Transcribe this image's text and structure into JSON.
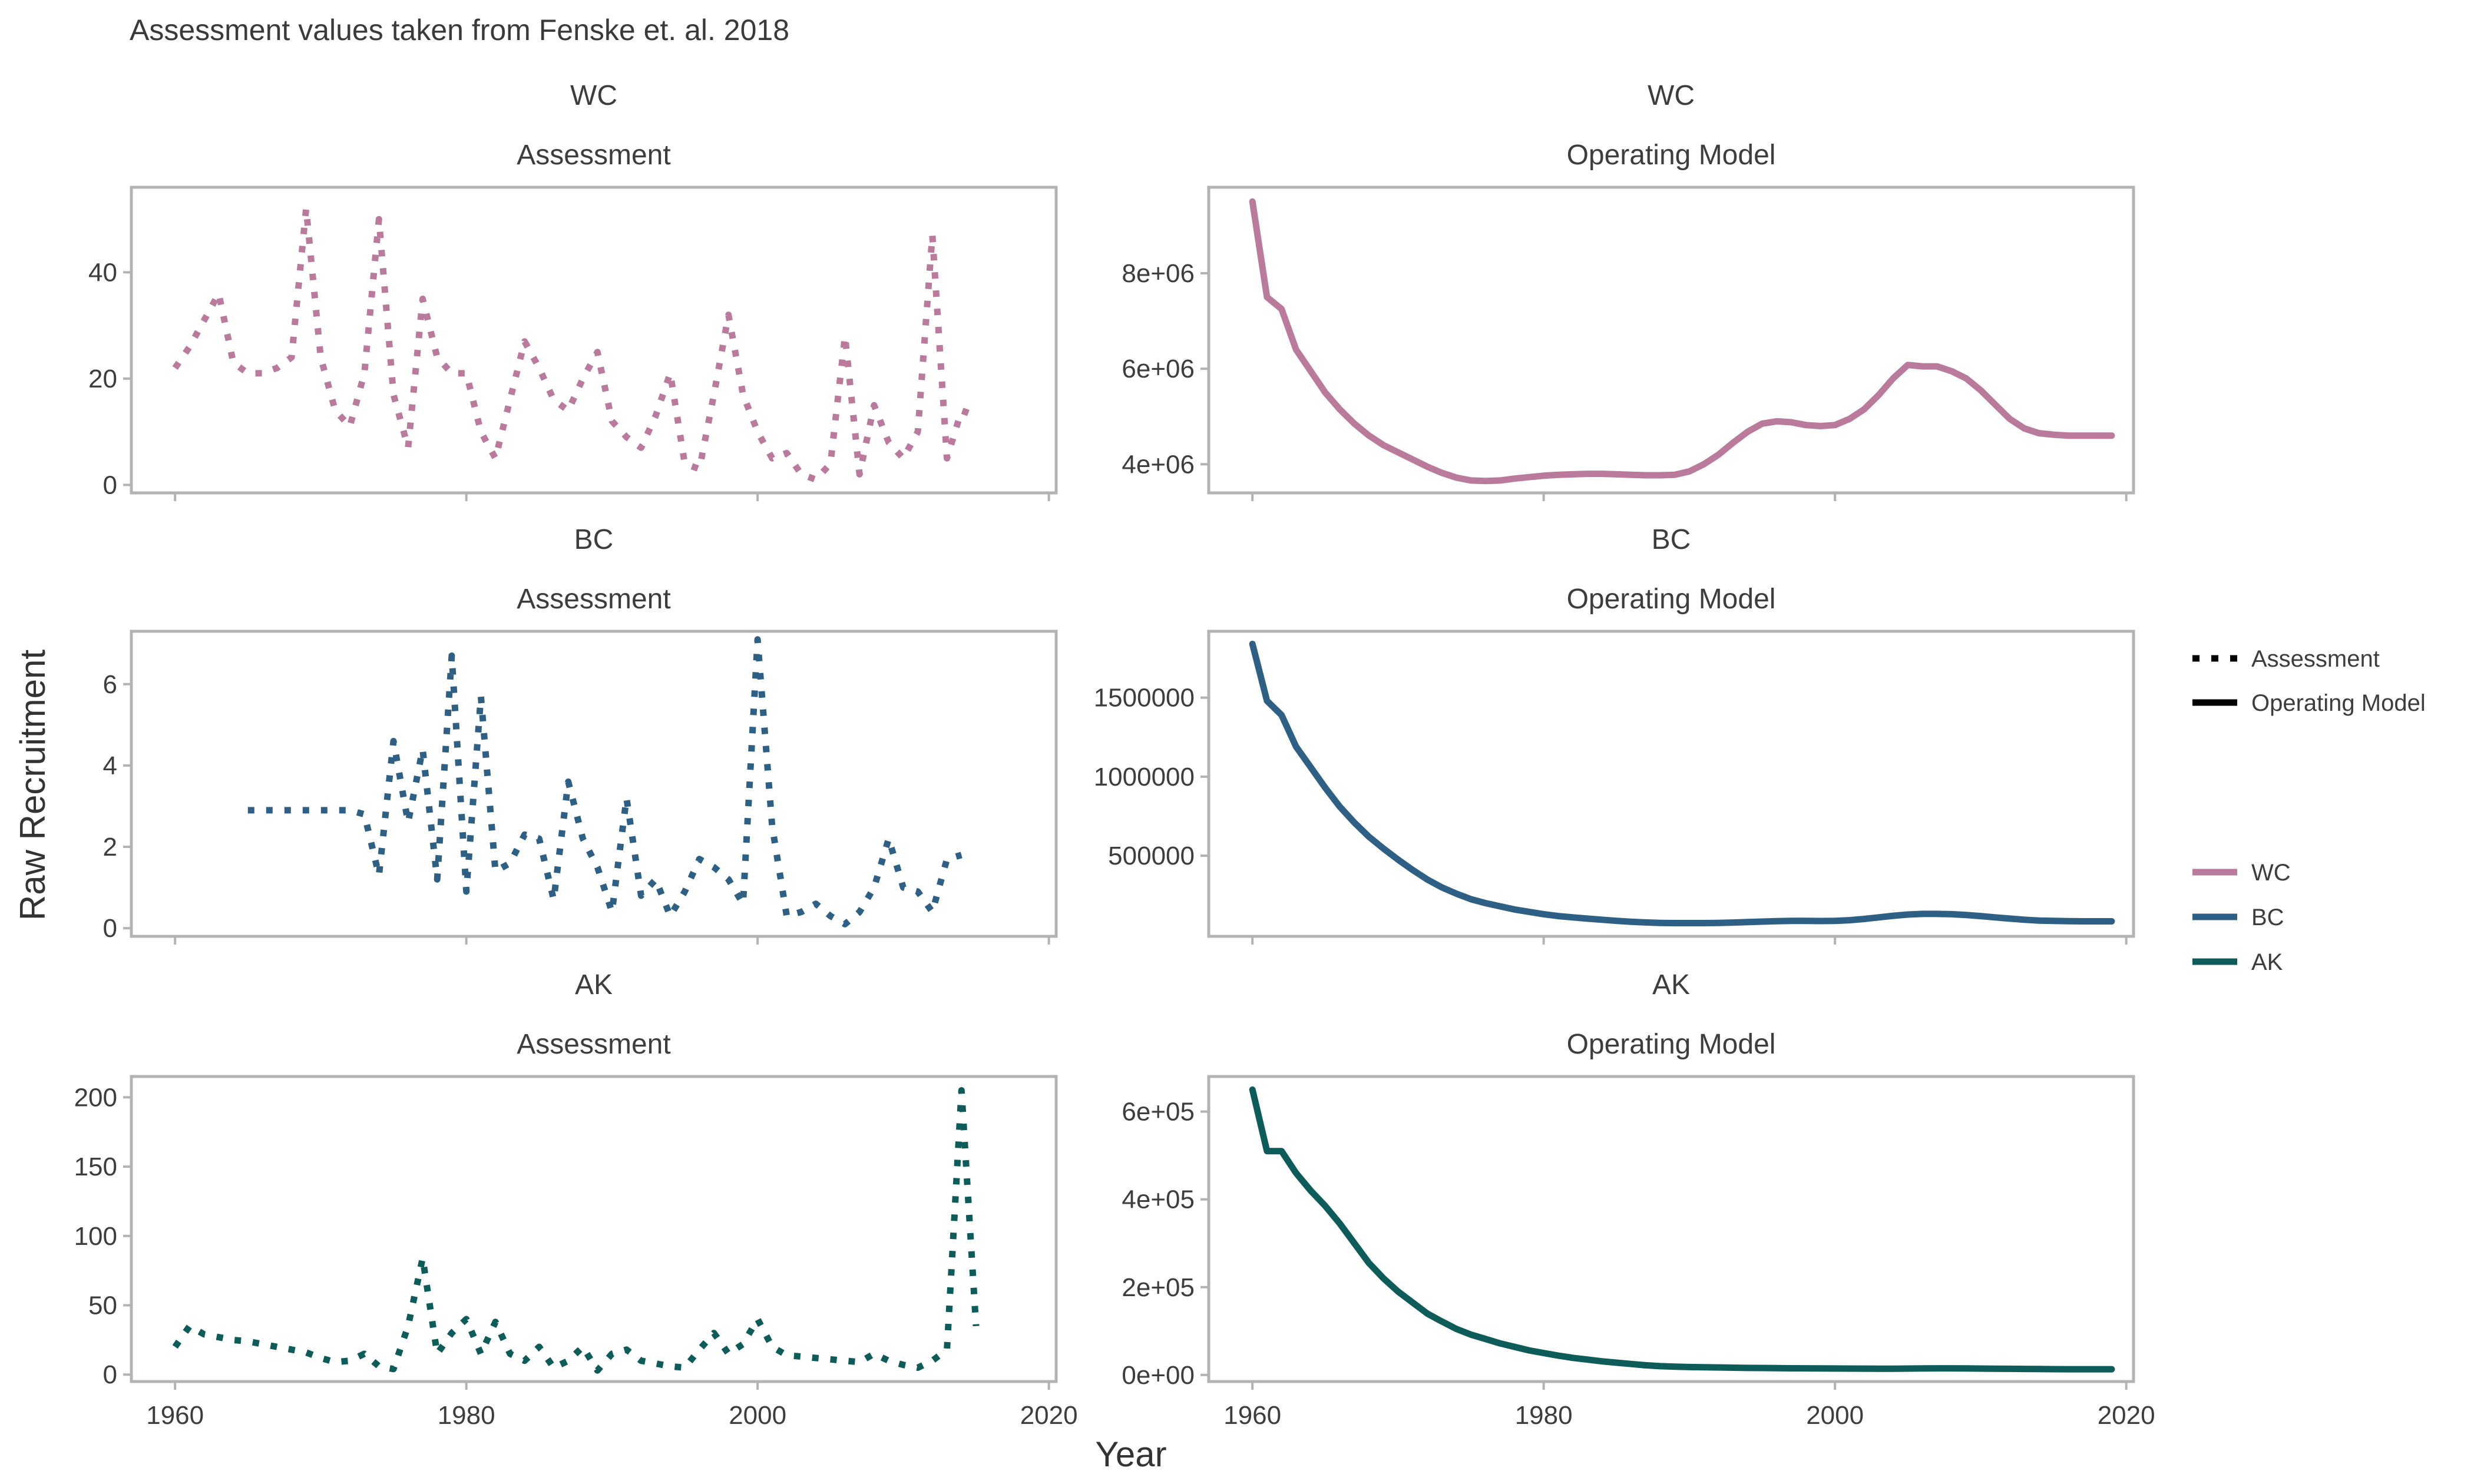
{
  "title": "Assessment values taken from Fenske et. al. 2018",
  "xlabel": "Year",
  "ylabel": "Raw Recruitment",
  "legend_linetype": [
    {
      "label": "Assessment",
      "dash": "dotted"
    },
    {
      "label": "Operating Model",
      "dash": "solid"
    }
  ],
  "legend_color": [
    {
      "label": "WC",
      "color": "#b97a9b"
    },
    {
      "label": "BC",
      "color": "#2e5f84"
    },
    {
      "label": "AK",
      "color": "#0d5c59"
    }
  ],
  "chart_data": {
    "type": "line",
    "facet_rows": [
      "WC",
      "BC",
      "AK"
    ],
    "facet_cols": [
      "Assessment",
      "Operating Model"
    ],
    "xlim": [
      1957,
      2020.5
    ],
    "x_ticks": [
      1960,
      1980,
      2000,
      2020
    ],
    "x_tick_labels": [
      "1960",
      "1980",
      "2000",
      "2020"
    ],
    "panels": [
      {
        "stock": "WC",
        "model": "Assessment",
        "color": "#b97a9b",
        "dash": "dotted",
        "ylim": [
          -1.5,
          56
        ],
        "y_ticks": [
          0,
          20,
          40
        ],
        "y_tick_labels": [
          "0",
          "20",
          "40"
        ],
        "x": [
          1960,
          1961,
          1962,
          1963,
          1964,
          1965,
          1966,
          1967,
          1968,
          1969,
          1970,
          1971,
          1972,
          1973,
          1974,
          1975,
          1976,
          1977,
          1978,
          1979,
          1980,
          1981,
          1982,
          1983,
          1984,
          1985,
          1986,
          1987,
          1988,
          1989,
          1990,
          1991,
          1992,
          1993,
          1994,
          1995,
          1996,
          1997,
          1998,
          1999,
          2000,
          2001,
          2002,
          2003,
          2004,
          2005,
          2006,
          2007,
          2008,
          2009,
          2010,
          2011,
          2012,
          2013,
          2014,
          2015
        ],
        "y": [
          22,
          26,
          31,
          36,
          23,
          21,
          21,
          22,
          24,
          52,
          24,
          14,
          11,
          21,
          50,
          17,
          7,
          35,
          24,
          21,
          21,
          10,
          5,
          16,
          27,
          22,
          16,
          14,
          20,
          25,
          12,
          9,
          7,
          13,
          21,
          4,
          3,
          17,
          32,
          17,
          10,
          5,
          6,
          2,
          1,
          4,
          28,
          2,
          15,
          8,
          5,
          10,
          47,
          5,
          14,
          13
        ]
      },
      {
        "stock": "WC",
        "model": "Operating Model",
        "color": "#b97a9b",
        "dash": "solid",
        "ylim": [
          3400000,
          9800000
        ],
        "y_ticks": [
          4000000,
          6000000,
          8000000
        ],
        "y_tick_labels": [
          "4e+06",
          "6e+06",
          "8e+06"
        ],
        "x": [
          1960,
          1961,
          1962,
          1963,
          1964,
          1965,
          1966,
          1967,
          1968,
          1969,
          1970,
          1971,
          1972,
          1973,
          1974,
          1975,
          1976,
          1977,
          1978,
          1979,
          1980,
          1981,
          1982,
          1983,
          1984,
          1985,
          1986,
          1987,
          1988,
          1989,
          1990,
          1991,
          1992,
          1993,
          1994,
          1995,
          1996,
          1997,
          1998,
          1999,
          2000,
          2001,
          2002,
          2003,
          2004,
          2005,
          2006,
          2007,
          2008,
          2009,
          2010,
          2011,
          2012,
          2013,
          2014,
          2015,
          2016,
          2017,
          2018,
          2019
        ],
        "y": [
          9500000,
          7500000,
          7250000,
          6400000,
          5950000,
          5500000,
          5150000,
          4850000,
          4600000,
          4400000,
          4250000,
          4100000,
          3950000,
          3820000,
          3720000,
          3660000,
          3650000,
          3660000,
          3700000,
          3730000,
          3760000,
          3780000,
          3790000,
          3800000,
          3800000,
          3790000,
          3780000,
          3770000,
          3770000,
          3780000,
          3850000,
          4000000,
          4200000,
          4450000,
          4680000,
          4850000,
          4900000,
          4880000,
          4820000,
          4800000,
          4820000,
          4950000,
          5150000,
          5450000,
          5800000,
          6080000,
          6050000,
          6050000,
          5950000,
          5800000,
          5550000,
          5250000,
          4950000,
          4750000,
          4650000,
          4620000,
          4600000,
          4600000,
          4600000,
          4600000
        ]
      },
      {
        "stock": "BC",
        "model": "Assessment",
        "color": "#2e5f84",
        "dash": "dotted",
        "ylim": [
          -0.2,
          7.3
        ],
        "y_ticks": [
          0,
          2,
          4,
          6
        ],
        "y_tick_labels": [
          "0",
          "2",
          "4",
          "6"
        ],
        "x": [
          1965,
          1966,
          1967,
          1968,
          1969,
          1970,
          1971,
          1972,
          1973,
          1974,
          1975,
          1976,
          1977,
          1978,
          1979,
          1980,
          1981,
          1982,
          1983,
          1984,
          1985,
          1986,
          1987,
          1988,
          1989,
          1990,
          1991,
          1992,
          1993,
          1994,
          1995,
          1996,
          1997,
          1998,
          1999,
          2000,
          2001,
          2002,
          2003,
          2004,
          2005,
          2006,
          2007,
          2008,
          2009,
          2010,
          2011,
          2012,
          2013,
          2014
        ],
        "y": [
          2.9,
          2.9,
          2.9,
          2.9,
          2.9,
          2.9,
          2.9,
          2.9,
          2.8,
          1.3,
          4.6,
          2.6,
          4.4,
          1.2,
          6.7,
          0.9,
          5.7,
          1.4,
          1.6,
          2.3,
          2.2,
          0.7,
          3.6,
          2.2,
          1.5,
          0.4,
          3.2,
          0.8,
          1.2,
          0.3,
          0.9,
          1.7,
          1.5,
          1.2,
          0.6,
          7.1,
          2.5,
          0.3,
          0.4,
          0.6,
          0.3,
          0.1,
          0.4,
          1.0,
          2.2,
          1.0,
          0.9,
          0.4,
          1.7,
          1.8
        ]
      },
      {
        "stock": "BC",
        "model": "Operating Model",
        "color": "#2e5f84",
        "dash": "solid",
        "ylim": [
          -10000,
          1920000
        ],
        "y_ticks": [
          500000,
          1000000,
          1500000
        ],
        "y_tick_labels": [
          "500000",
          "1000000",
          "1500000"
        ],
        "x": [
          1960,
          1961,
          1962,
          1963,
          1964,
          1965,
          1966,
          1967,
          1968,
          1969,
          1970,
          1971,
          1972,
          1973,
          1974,
          1975,
          1976,
          1977,
          1978,
          1979,
          1980,
          1981,
          1982,
          1983,
          1984,
          1985,
          1986,
          1987,
          1988,
          1989,
          1990,
          1991,
          1992,
          1993,
          1994,
          1995,
          1996,
          1997,
          1998,
          1999,
          2000,
          2001,
          2002,
          2003,
          2004,
          2005,
          2006,
          2007,
          2008,
          2009,
          2010,
          2011,
          2012,
          2013,
          2014,
          2015,
          2016,
          2017,
          2018,
          2019
        ],
        "y": [
          1840000,
          1480000,
          1390000,
          1190000,
          1060000,
          930000,
          810000,
          710000,
          620000,
          545000,
          475000,
          410000,
          350000,
          300000,
          260000,
          225000,
          200000,
          180000,
          160000,
          145000,
          130000,
          118000,
          110000,
          102000,
          95000,
          88000,
          82000,
          78000,
          75000,
          74000,
          74000,
          74000,
          75000,
          77000,
          80000,
          83000,
          86000,
          88000,
          88000,
          87000,
          88000,
          92000,
          100000,
          110000,
          120000,
          128000,
          132000,
          132000,
          130000,
          125000,
          118000,
          110000,
          102000,
          95000,
          90000,
          88000,
          86000,
          85000,
          85000,
          85000
        ]
      },
      {
        "stock": "AK",
        "model": "Assessment",
        "color": "#0d5c59",
        "dash": "dotted",
        "ylim": [
          -5,
          215
        ],
        "y_ticks": [
          0,
          50,
          100,
          150,
          200
        ],
        "y_tick_labels": [
          "0",
          "50",
          "100",
          "150",
          "200"
        ],
        "x": [
          1960,
          1961,
          1962,
          1963,
          1964,
          1965,
          1966,
          1967,
          1968,
          1969,
          1970,
          1971,
          1972,
          1973,
          1974,
          1975,
          1976,
          1977,
          1978,
          1979,
          1980,
          1981,
          1982,
          1983,
          1984,
          1985,
          1986,
          1987,
          1988,
          1989,
          1990,
          1991,
          1992,
          1993,
          1994,
          1995,
          1996,
          1997,
          1998,
          1999,
          2000,
          2001,
          2002,
          2003,
          2004,
          2005,
          2006,
          2007,
          2008,
          2009,
          2010,
          2011,
          2012,
          2013,
          2014,
          2015
        ],
        "y": [
          20,
          35,
          29,
          27,
          25,
          24,
          22,
          20,
          18,
          16,
          12,
          9,
          10,
          15,
          6,
          4,
          35,
          84,
          15,
          30,
          40,
          15,
          38,
          15,
          10,
          20,
          5,
          10,
          20,
          3,
          15,
          18,
          10,
          8,
          6,
          5,
          18,
          30,
          15,
          22,
          40,
          20,
          14,
          13,
          12,
          11,
          10,
          9,
          15,
          10,
          7,
          5,
          10,
          18,
          205,
          35
        ]
      },
      {
        "stock": "AK",
        "model": "Operating Model",
        "color": "#0d5c59",
        "dash": "solid",
        "ylim": [
          -15000,
          680000
        ],
        "y_ticks": [
          0,
          200000,
          400000,
          600000
        ],
        "y_tick_labels": [
          "0e+00",
          "2e+05",
          "4e+05",
          "6e+05"
        ],
        "x": [
          1960,
          1961,
          1962,
          1963,
          1964,
          1965,
          1966,
          1967,
          1968,
          1969,
          1970,
          1971,
          1972,
          1973,
          1974,
          1975,
          1976,
          1977,
          1978,
          1979,
          1980,
          1981,
          1982,
          1983,
          1984,
          1985,
          1986,
          1987,
          1988,
          1989,
          1990,
          1991,
          1992,
          1993,
          1994,
          1995,
          1996,
          1997,
          1998,
          1999,
          2000,
          2001,
          2002,
          2003,
          2004,
          2005,
          2006,
          2007,
          2008,
          2009,
          2010,
          2011,
          2012,
          2013,
          2014,
          2015,
          2016,
          2017,
          2018,
          2019
        ],
        "y": [
          650000,
          510000,
          510000,
          460000,
          420000,
          385000,
          345000,
          300000,
          255000,
          220000,
          190000,
          165000,
          140000,
          122000,
          105000,
          92000,
          82000,
          72000,
          64000,
          56000,
          50000,
          44000,
          39000,
          35000,
          31000,
          28000,
          25000,
          22000,
          20000,
          19000,
          18000,
          17500,
          17000,
          16500,
          16000,
          15800,
          15500,
          15200,
          15000,
          14800,
          14600,
          14500,
          14400,
          14300,
          14300,
          14500,
          14800,
          15000,
          15000,
          14800,
          14500,
          14200,
          14000,
          13700,
          13400,
          13200,
          13000,
          13000,
          13000,
          13000
        ]
      }
    ]
  }
}
